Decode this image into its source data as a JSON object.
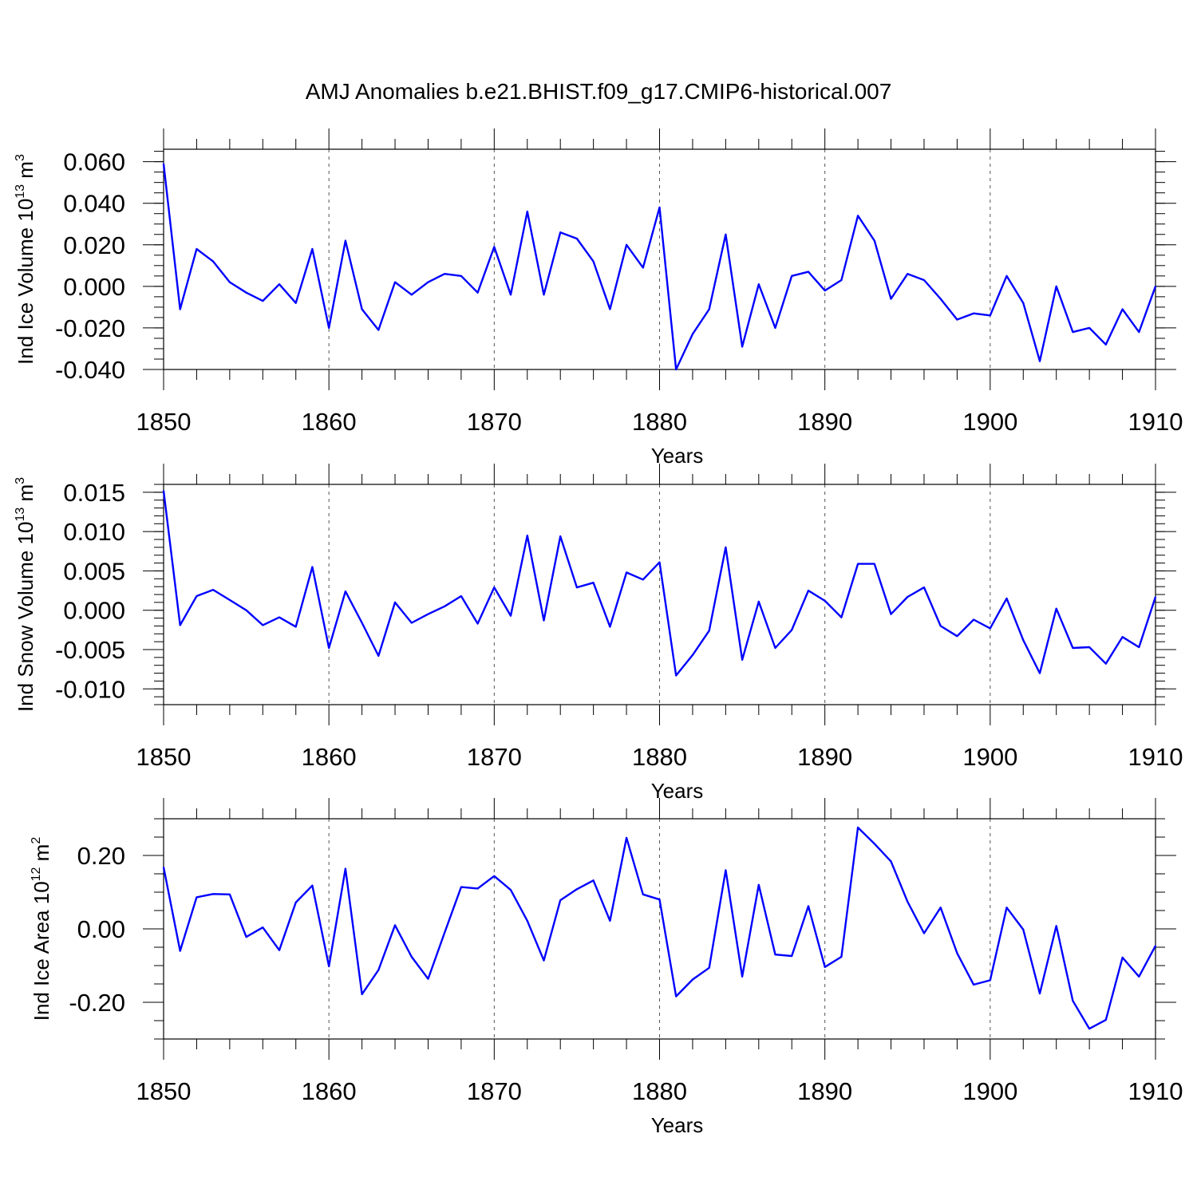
{
  "figure_title": "AMJ Anomalies b.e21.BHIST.f09_g17.CMIP6-historical.007",
  "line_color": "#0000ff",
  "chart_data": [
    {
      "type": "line",
      "ylabel": "Ind Ice Volume 10",
      "ylabel_exp": "13",
      "ylabel_unit": " m",
      "ylabel_unit_exp": "3",
      "xlabel": "Years",
      "xlim": [
        1850,
        1910
      ],
      "ylim": [
        -0.04,
        0.066
      ],
      "yticks": [
        -0.04,
        -0.02,
        0.0,
        0.02,
        0.04,
        0.06
      ],
      "ytick_labels": [
        "-0.040",
        "-0.020",
        "0.000",
        "0.020",
        "0.040",
        "0.060"
      ],
      "yminor": 0.005,
      "xticks": [
        1850,
        1860,
        1870,
        1880,
        1890,
        1900,
        1910
      ],
      "xtick_labels": [
        "1850",
        "1860",
        "1870",
        "1880",
        "1890",
        "1900",
        "1910"
      ],
      "gridlines_x": [
        1860,
        1870,
        1880,
        1890,
        1900
      ],
      "x": [
        1850,
        1851,
        1852,
        1853,
        1854,
        1855,
        1856,
        1857,
        1858,
        1859,
        1860,
        1861,
        1862,
        1863,
        1864,
        1865,
        1866,
        1867,
        1868,
        1869,
        1870,
        1871,
        1872,
        1873,
        1874,
        1875,
        1876,
        1877,
        1878,
        1879,
        1880,
        1881,
        1882,
        1883,
        1884,
        1885,
        1886,
        1887,
        1888,
        1889,
        1890,
        1891,
        1892,
        1893,
        1894,
        1895,
        1896,
        1897,
        1898,
        1899,
        1900,
        1901,
        1902,
        1903,
        1904,
        1905,
        1906,
        1907,
        1908,
        1909,
        1910
      ],
      "values": [
        0.059,
        -0.011,
        0.018,
        0.012,
        0.002,
        -0.003,
        -0.007,
        0.001,
        -0.008,
        0.018,
        -0.02,
        0.022,
        -0.011,
        -0.021,
        0.002,
        -0.004,
        0.002,
        0.006,
        0.005,
        -0.003,
        0.019,
        -0.004,
        0.036,
        -0.004,
        0.026,
        0.023,
        0.012,
        -0.011,
        0.02,
        0.009,
        0.038,
        -0.04,
        -0.023,
        -0.011,
        0.025,
        -0.029,
        0.001,
        -0.02,
        0.005,
        0.007,
        -0.002,
        0.003,
        0.034,
        0.022,
        -0.006,
        0.006,
        0.003,
        -0.006,
        -0.016,
        -0.013,
        -0.014,
        0.005,
        -0.008,
        -0.036,
        0.0,
        -0.022,
        -0.02,
        -0.028,
        -0.011,
        -0.022,
        0.0
      ]
    },
    {
      "type": "line",
      "ylabel": "Ind Snow Volume 10",
      "ylabel_exp": "13",
      "ylabel_unit": " m",
      "ylabel_unit_exp": "3",
      "xlabel": "Years",
      "xlim": [
        1850,
        1910
      ],
      "ylim": [
        -0.012,
        0.016
      ],
      "yticks": [
        -0.01,
        -0.005,
        0.0,
        0.005,
        0.01,
        0.015
      ],
      "ytick_labels": [
        "-0.010",
        "-0.005",
        "0.000",
        "0.005",
        "0.010",
        "0.015"
      ],
      "yminor": 0.001,
      "xticks": [
        1850,
        1860,
        1870,
        1880,
        1890,
        1900,
        1910
      ],
      "xtick_labels": [
        "1850",
        "1860",
        "1870",
        "1880",
        "1890",
        "1900",
        "1910"
      ],
      "gridlines_x": [
        1860,
        1870,
        1880,
        1890,
        1900
      ],
      "x": [
        1850,
        1851,
        1852,
        1853,
        1854,
        1855,
        1856,
        1857,
        1858,
        1859,
        1860,
        1861,
        1862,
        1863,
        1864,
        1865,
        1866,
        1867,
        1868,
        1869,
        1870,
        1871,
        1872,
        1873,
        1874,
        1875,
        1876,
        1877,
        1878,
        1879,
        1880,
        1881,
        1882,
        1883,
        1884,
        1885,
        1886,
        1887,
        1888,
        1889,
        1890,
        1891,
        1892,
        1893,
        1894,
        1895,
        1896,
        1897,
        1898,
        1899,
        1900,
        1901,
        1902,
        1903,
        1904,
        1905,
        1906,
        1907,
        1908,
        1909,
        1910
      ],
      "values": [
        0.0152,
        -0.0019,
        0.0018,
        0.0026,
        0.0013,
        0.0,
        -0.0019,
        -0.0009,
        -0.0021,
        0.0055,
        -0.0048,
        0.0024,
        -0.0016,
        -0.0058,
        0.001,
        -0.0016,
        -0.0005,
        0.0005,
        0.0018,
        -0.0017,
        0.0029,
        -0.0007,
        0.0095,
        -0.0013,
        0.0094,
        0.0029,
        0.0035,
        -0.0021,
        0.0048,
        0.0039,
        0.0061,
        -0.0083,
        -0.0057,
        -0.0026,
        0.008,
        -0.0063,
        0.0011,
        -0.0048,
        -0.0025,
        0.0025,
        0.0012,
        -0.0009,
        0.0059,
        0.0059,
        -0.0005,
        0.0017,
        0.0029,
        -0.002,
        -0.0033,
        -0.0012,
        -0.0023,
        0.0015,
        -0.0038,
        -0.008,
        0.0002,
        -0.0048,
        -0.0047,
        -0.0068,
        -0.0034,
        -0.0047,
        0.0017
      ]
    },
    {
      "type": "line",
      "ylabel": "Ind Ice Area 10",
      "ylabel_exp": "12",
      "ylabel_unit": " m",
      "ylabel_unit_exp": "2",
      "xlabel": "Years",
      "xlim": [
        1850,
        1910
      ],
      "ylim": [
        -0.3,
        0.3
      ],
      "yticks": [
        -0.2,
        0.0,
        0.2
      ],
      "ytick_labels": [
        "-0.20",
        "0.00",
        "0.20"
      ],
      "yminor": 0.05,
      "xticks": [
        1850,
        1860,
        1870,
        1880,
        1890,
        1900,
        1910
      ],
      "xtick_labels": [
        "1850",
        "1860",
        "1870",
        "1880",
        "1890",
        "1900",
        "1910"
      ],
      "gridlines_x": [
        1860,
        1870,
        1880,
        1890,
        1900
      ],
      "x": [
        1850,
        1851,
        1852,
        1853,
        1854,
        1855,
        1856,
        1857,
        1858,
        1859,
        1860,
        1861,
        1862,
        1863,
        1864,
        1865,
        1866,
        1867,
        1868,
        1869,
        1870,
        1871,
        1872,
        1873,
        1874,
        1875,
        1876,
        1877,
        1878,
        1879,
        1880,
        1881,
        1882,
        1883,
        1884,
        1885,
        1886,
        1887,
        1888,
        1889,
        1890,
        1891,
        1892,
        1893,
        1894,
        1895,
        1896,
        1897,
        1898,
        1899,
        1900,
        1901,
        1902,
        1903,
        1904,
        1905,
        1906,
        1907,
        1908,
        1909,
        1910
      ],
      "values": [
        0.168,
        -0.06,
        0.086,
        0.095,
        0.094,
        -0.022,
        0.004,
        -0.058,
        0.072,
        0.118,
        -0.102,
        0.164,
        -0.178,
        -0.112,
        0.01,
        -0.076,
        -0.136,
        -0.01,
        0.114,
        0.11,
        0.144,
        0.106,
        0.022,
        -0.086,
        0.078,
        0.108,
        0.132,
        0.022,
        0.248,
        0.094,
        0.08,
        -0.184,
        -0.138,
        -0.106,
        0.16,
        -0.13,
        0.12,
        -0.07,
        -0.074,
        0.062,
        -0.104,
        -0.076,
        0.276,
        0.232,
        0.184,
        0.074,
        -0.012,
        0.058,
        -0.066,
        -0.152,
        -0.14,
        0.058,
        -0.002,
        -0.176,
        0.008,
        -0.196,
        -0.272,
        -0.248,
        -0.078,
        -0.13,
        -0.046
      ]
    }
  ]
}
